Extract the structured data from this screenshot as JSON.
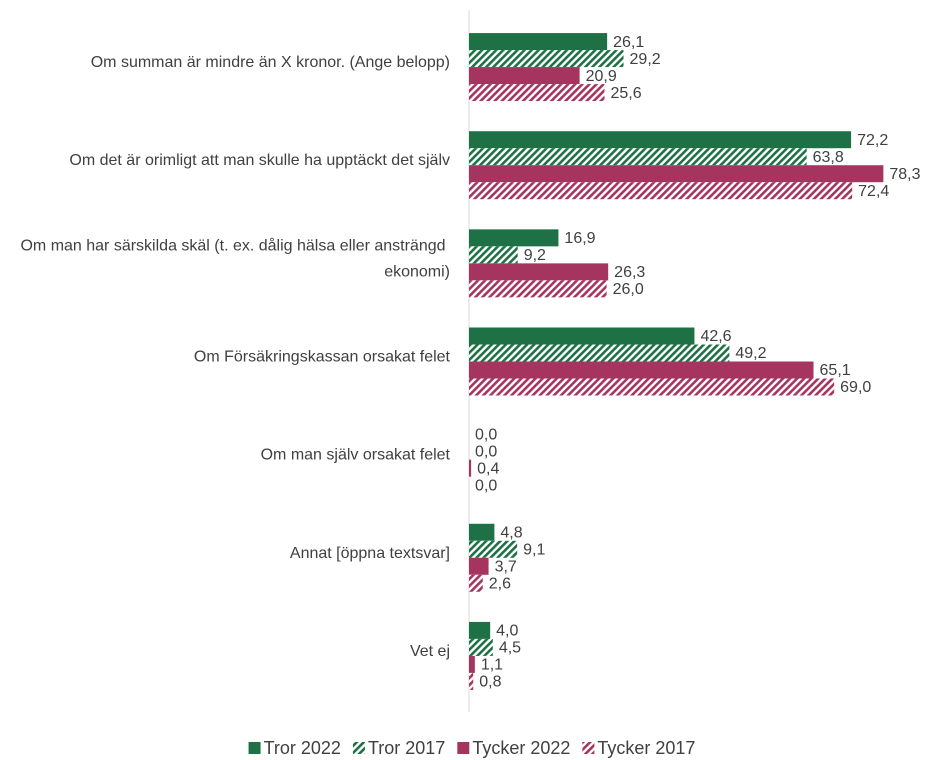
{
  "chart_data": {
    "type": "hbar",
    "categories": [
      "Om summan är mindre än X kronor. (Ange belopp)",
      "Om det är orimligt att man skulle ha upptäckt det själv",
      "Om man har särskilda skäl (t. ex. dålig hälsa eller ansträngd ekonomi)",
      "Om Försäkringskassan orsakat felet",
      "Om man själv orsakat felet",
      "Annat [öppna textsvar]",
      "Vet ej"
    ],
    "series": [
      {
        "name": "Tror 2022",
        "color": "#1e7145",
        "pattern": "solid",
        "values": [
          26.1,
          72.2,
          16.9,
          42.6,
          0,
          4.8,
          4.0
        ],
        "value_labels": [
          "26,1",
          "72,2",
          "16,9",
          "42,6",
          "0,0",
          "4,8",
          "4,0"
        ]
      },
      {
        "name": "Tror 2017",
        "color": "#1e7145",
        "pattern": "hatch",
        "values": [
          29.2,
          63.8,
          9.2,
          49.2,
          0,
          9.1,
          4.5
        ],
        "value_labels": [
          "29,2",
          "63,8",
          "9,2",
          "49,2",
          "0,0",
          "9,1",
          "4,5"
        ]
      },
      {
        "name": "Tycker 2022",
        "color": "#a5355f",
        "pattern": "solid",
        "values": [
          20.9,
          78.3,
          26.3,
          65.1,
          0.4,
          3.7,
          1.1
        ],
        "value_labels": [
          "20,9",
          "78,3",
          "26,3",
          "65,1",
          "0,4",
          "3,7",
          "1,1"
        ]
      },
      {
        "name": "Tycker 2017",
        "color": "#a5355f",
        "pattern": "hatch",
        "values": [
          25.6,
          72.4,
          26.0,
          69.0,
          0,
          2.6,
          0.8
        ],
        "value_labels": [
          "25,6",
          "72,4",
          "26,0",
          "69,0",
          "0,0",
          "2,6",
          "0,8"
        ]
      }
    ],
    "xlim": [
      0,
      89
    ],
    "legend": "bottom"
  }
}
